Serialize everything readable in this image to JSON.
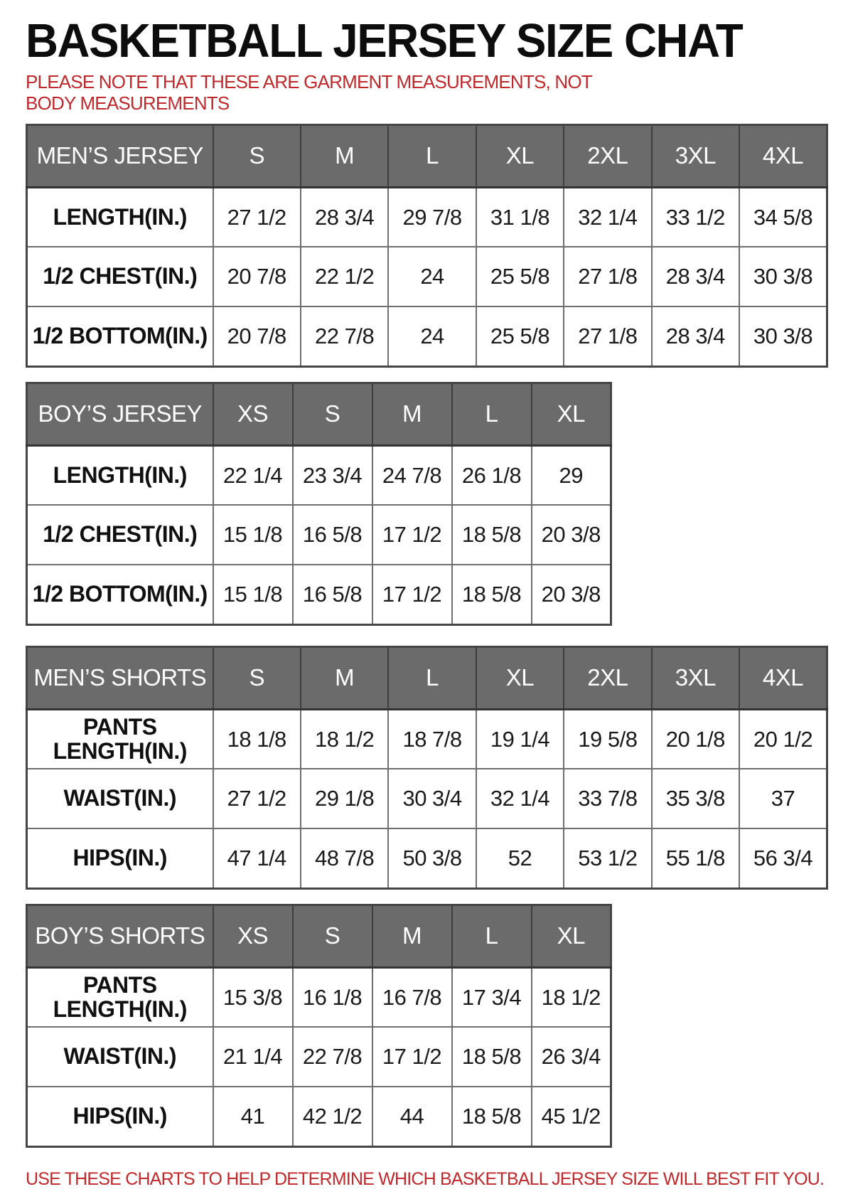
{
  "page": {
    "title": "BASKETBALL JERSEY SIZE CHAT",
    "note": "PLEASE NOTE THAT THESE ARE GARMENT MEASUREMENTS, NOT BODY MEASUREMENTS",
    "footer": "USE THESE CHARTS TO HELP DETERMINE WHICH BASKETBALL JERSEY SIZE WILL BEST FIT YOU.",
    "colors": {
      "header_bg": "#6b6b6b",
      "header_text": "#ffffff",
      "accent_red": "#c1282b",
      "cell_text": "#141414"
    }
  },
  "tables": [
    {
      "name": "mens-jersey",
      "header": [
        "MEN’S JERSEY",
        "S",
        "M",
        "L",
        "XL",
        "2XL",
        "3XL",
        "4XL"
      ],
      "rows": [
        [
          "LENGTH(IN.)",
          "27 1/2",
          "28 3/4",
          "29 7/8",
          "31 1/8",
          "32 1/4",
          "33 1/2",
          "34 5/8"
        ],
        [
          "1/2 CHEST(IN.)",
          "20 7/8",
          "22 1/2",
          "24",
          "25 5/8",
          "27 1/8",
          "28 3/4",
          "30 3/8"
        ],
        [
          "1/2 BOTTOM(IN.)",
          "20 7/8",
          "22 7/8",
          "24",
          "25 5/8",
          "27 1/8",
          "28 3/4",
          "30 3/8"
        ]
      ]
    },
    {
      "name": "boys-jersey",
      "header": [
        "BOY’S JERSEY",
        "XS",
        "S",
        "M",
        "L",
        "XL"
      ],
      "rows": [
        [
          "LENGTH(IN.)",
          "22 1/4",
          "23 3/4",
          "24 7/8",
          "26 1/8",
          "29"
        ],
        [
          "1/2 CHEST(IN.)",
          "15 1/8",
          "16 5/8",
          "17 1/2",
          "18 5/8",
          "20 3/8"
        ],
        [
          "1/2 BOTTOM(IN.)",
          "15 1/8",
          "16 5/8",
          "17 1/2",
          "18 5/8",
          "20 3/8"
        ]
      ]
    },
    {
      "name": "mens-shorts",
      "header": [
        "MEN’S SHORTS",
        "S",
        "M",
        "L",
        "XL",
        "2XL",
        "3XL",
        "4XL"
      ],
      "rows": [
        [
          "PANTS LENGTH(IN.)",
          "18 1/8",
          "18 1/2",
          "18 7/8",
          "19 1/4",
          "19 5/8",
          "20 1/8",
          "20 1/2"
        ],
        [
          "WAIST(IN.)",
          "27 1/2",
          "29 1/8",
          "30 3/4",
          "32 1/4",
          "33 7/8",
          "35 3/8",
          "37"
        ],
        [
          "HIPS(IN.)",
          "47 1/4",
          "48 7/8",
          "50 3/8",
          "52",
          "53 1/2",
          "55 1/8",
          "56 3/4"
        ]
      ]
    },
    {
      "name": "boys-shorts",
      "header": [
        "BOY’S SHORTS",
        "XS",
        "S",
        "M",
        "L",
        "XL"
      ],
      "rows": [
        [
          "PANTS LENGTH(IN.)",
          "15 3/8",
          "16 1/8",
          "16 7/8",
          "17 3/4",
          "18 1/2"
        ],
        [
          "WAIST(IN.)",
          "21 1/4",
          "22 7/8",
          "17 1/2",
          "18 5/8",
          "26 3/4"
        ],
        [
          "HIPS(IN.)",
          "41",
          "42 1/2",
          "44",
          "18 5/8",
          "45 1/2"
        ]
      ]
    }
  ]
}
